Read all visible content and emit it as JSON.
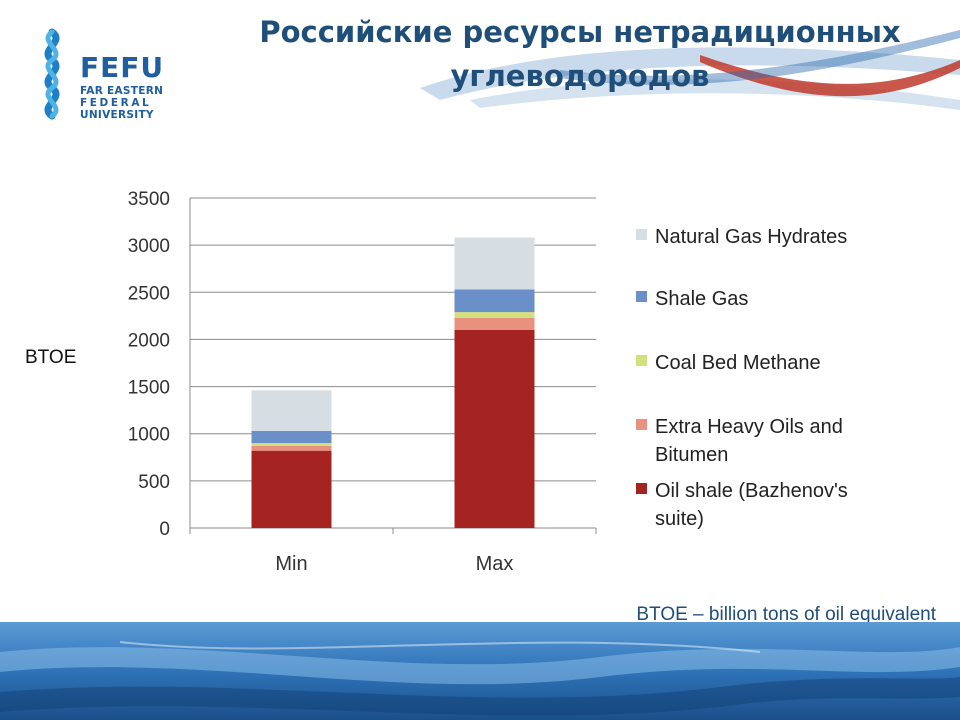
{
  "slide": {
    "title_line1": "Российские ресурсы нетрадиционных",
    "title_line2": "углеводородов",
    "footnote": "BTOE – billion tons of oil equivalent"
  },
  "logo": {
    "word": "FEFU",
    "line1": "FAR EASTERN",
    "line2": "FEDERAL",
    "line3": "UNIVERSITY"
  },
  "colors": {
    "title": "#1f4e79",
    "brand_blue": "#1f5fa0",
    "accent_red": "#c0392b"
  },
  "chart_data": {
    "type": "bar",
    "stacked": true,
    "categories": [
      "Min",
      "Max"
    ],
    "ylabel": "BTOE",
    "ylim": [
      0,
      3500
    ],
    "yticks": [
      0,
      500,
      1000,
      1500,
      2000,
      2500,
      3000,
      3500
    ],
    "grid": true,
    "legend_position": "right",
    "series": [
      {
        "name": "Oil shale (Bazhenov's suite)",
        "label_lines": [
          "Oil shale (Bazhenov's",
          "suite)"
        ],
        "color": "#a52422",
        "values": [
          820,
          2100
        ]
      },
      {
        "name": "Extra Heavy Oils and Bitumen",
        "label_lines": [
          "Extra Heavy Oils and",
          "Bitumen"
        ],
        "color": "#e8917e",
        "values": [
          50,
          130
        ]
      },
      {
        "name": "Coal Bed Methane",
        "label_lines": [
          "Coal Bed Methane"
        ],
        "color": "#d3e07e",
        "values": [
          30,
          60
        ]
      },
      {
        "name": "Shale Gas",
        "label_lines": [
          "Shale Gas"
        ],
        "color": "#6a8fc9",
        "values": [
          130,
          240
        ]
      },
      {
        "name": "Natural Gas Hydrates",
        "label_lines": [
          "Natural Gas Hydrates"
        ],
        "color": "#d6dde3",
        "values": [
          430,
          550
        ]
      }
    ]
  }
}
